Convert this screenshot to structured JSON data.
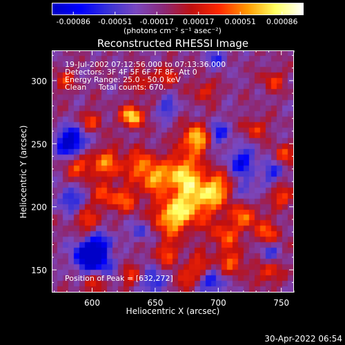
{
  "colorbar": {
    "tick_labels": [
      "-0.00086",
      "-0.00051",
      "-0.00017",
      "0.00017",
      "0.00051",
      "0.00086"
    ],
    "unit_label": "(photons cm⁻² s⁻¹ asec⁻²)",
    "colors": [
      "#0000c8",
      "#0000ff",
      "#3a33d8",
      "#7a48c0",
      "#8c2a78",
      "#c01010",
      "#ff2a00",
      "#ff9a00",
      "#ffff60",
      "#ffffff"
    ]
  },
  "title": "Reconstructed RHESSI Image",
  "info": {
    "line1": "19-Jul-2002 07:12:56.000 to 07:13:36.000",
    "line2": "Detectors: 3F 4F 5F 6F 7F 8F, Att 0",
    "line3": "Energy Range: 25.0 - 50.0 keV",
    "line4": "Clean     Total counts: 670."
  },
  "peak_label": "Position of Peak = [632,272]",
  "x_axis": {
    "label": "Heliocentric X (arcsec)",
    "range": [
      568,
      760
    ],
    "ticks": [
      600,
      650,
      700,
      750
    ],
    "tick_labels": [
      "600",
      "650",
      "700",
      "750"
    ]
  },
  "y_axis": {
    "label": "Heliocentric Y (arcsec)",
    "range": [
      132,
      324
    ],
    "ticks": [
      150,
      200,
      250,
      300
    ],
    "tick_labels": [
      "150",
      "200",
      "250",
      "300"
    ]
  },
  "timestamp": "30-Apr-2022 06:54",
  "sources": [
    {
      "x": 632,
      "y": 272,
      "a": 1.0,
      "r": 6
    },
    {
      "x": 683,
      "y": 254,
      "a": 0.92,
      "r": 8
    },
    {
      "x": 671,
      "y": 228,
      "a": 0.72,
      "r": 10
    },
    {
      "x": 680,
      "y": 205,
      "a": 0.78,
      "r": 14
    },
    {
      "x": 662,
      "y": 190,
      "a": 0.7,
      "r": 10
    },
    {
      "x": 700,
      "y": 214,
      "a": 0.62,
      "r": 9
    },
    {
      "x": 612,
      "y": 234,
      "a": 0.6,
      "r": 9
    },
    {
      "x": 590,
      "y": 232,
      "a": 0.55,
      "r": 7
    },
    {
      "x": 640,
      "y": 232,
      "a": 0.62,
      "r": 9
    },
    {
      "x": 650,
      "y": 220,
      "a": 0.55,
      "r": 7
    },
    {
      "x": 610,
      "y": 208,
      "a": 0.5,
      "r": 7
    },
    {
      "x": 628,
      "y": 205,
      "a": 0.55,
      "r": 7
    },
    {
      "x": 596,
      "y": 188,
      "a": 0.48,
      "r": 7
    },
    {
      "x": 722,
      "y": 192,
      "a": 0.56,
      "r": 8
    },
    {
      "x": 740,
      "y": 178,
      "a": 0.52,
      "r": 7
    },
    {
      "x": 706,
      "y": 176,
      "a": 0.5,
      "r": 8
    },
    {
      "x": 712,
      "y": 155,
      "a": 0.55,
      "r": 7
    },
    {
      "x": 686,
      "y": 152,
      "a": 0.52,
      "r": 7
    },
    {
      "x": 660,
      "y": 162,
      "a": 0.48,
      "r": 7
    },
    {
      "x": 740,
      "y": 148,
      "a": 0.5,
      "r": 7
    },
    {
      "x": 752,
      "y": 208,
      "a": 0.55,
      "r": 6
    },
    {
      "x": 752,
      "y": 240,
      "a": 0.5,
      "r": 6
    },
    {
      "x": 730,
      "y": 262,
      "a": 0.48,
      "r": 6
    },
    {
      "x": 744,
      "y": 300,
      "a": 0.45,
      "r": 6
    },
    {
      "x": 690,
      "y": 292,
      "a": 0.45,
      "r": 6
    },
    {
      "x": 662,
      "y": 304,
      "a": 0.42,
      "r": 6
    },
    {
      "x": 640,
      "y": 300,
      "a": 0.45,
      "r": 6
    },
    {
      "x": 600,
      "y": 268,
      "a": 0.45,
      "r": 6
    },
    {
      "x": 578,
      "y": 300,
      "a": 0.4,
      "r": 6
    },
    {
      "x": 618,
      "y": 164,
      "a": 0.48,
      "r": 6
    },
    {
      "x": 630,
      "y": 145,
      "a": 0.45,
      "r": 6
    },
    {
      "x": 600,
      "y": 138,
      "a": 0.42,
      "r": 6
    },
    {
      "x": 672,
      "y": 140,
      "a": 0.42,
      "r": 6
    }
  ],
  "sinks": [
    {
      "x": 583,
      "y": 251,
      "a": 1.0,
      "r": 8
    },
    {
      "x": 608,
      "y": 163,
      "a": 0.85,
      "r": 10
    },
    {
      "x": 596,
      "y": 160,
      "a": 0.8,
      "r": 8
    },
    {
      "x": 720,
      "y": 235,
      "a": 0.65,
      "r": 8
    },
    {
      "x": 745,
      "y": 228,
      "a": 0.55,
      "r": 6
    },
    {
      "x": 700,
      "y": 258,
      "a": 0.55,
      "r": 7
    },
    {
      "x": 722,
      "y": 212,
      "a": 0.45,
      "r": 6
    },
    {
      "x": 582,
      "y": 205,
      "a": 0.55,
      "r": 7
    },
    {
      "x": 640,
      "y": 180,
      "a": 0.4,
      "r": 6
    },
    {
      "x": 695,
      "y": 140,
      "a": 0.6,
      "r": 7
    },
    {
      "x": 740,
      "y": 163,
      "a": 0.45,
      "r": 6
    },
    {
      "x": 660,
      "y": 278,
      "a": 0.45,
      "r": 6
    },
    {
      "x": 700,
      "y": 318,
      "a": 0.45,
      "r": 6
    },
    {
      "x": 650,
      "y": 140,
      "a": 0.55,
      "r": 7
    }
  ]
}
